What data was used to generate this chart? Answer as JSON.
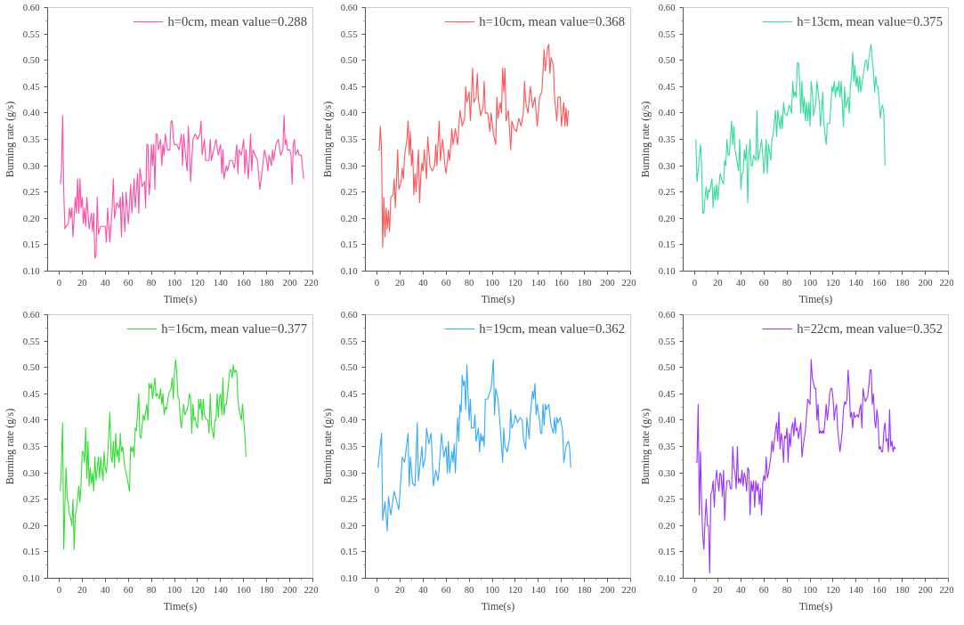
{
  "chart_data": [
    {
      "type": "line",
      "xlabel": "Time(s)",
      "ylabel": "Burning rate (g/s)",
      "legend": "top right",
      "xlim": [
        -10,
        220
      ],
      "xticks": [
        0,
        20,
        40,
        60,
        80,
        100,
        120,
        140,
        160,
        180,
        200,
        220
      ],
      "ylim": [
        0.1,
        0.6
      ],
      "yticks": [
        {
          "value": 0.1,
          "label": "0.10"
        },
        0.15,
        {
          "value": 0.2,
          "label": "0.20"
        },
        0.25,
        {
          "value": 0.3,
          "label": "0.30"
        },
        0.35,
        {
          "value": 0.4,
          "label": "0.40"
        },
        0.45,
        {
          "value": 0.5,
          "label": "0.50"
        },
        0.55,
        {
          "value": 0.6,
          "label": "0.60"
        }
      ],
      "series": [
        {
          "name": "h=0cm, mean value=0.288",
          "color": "#ff4da6",
          "x": [
            1,
            2,
            3,
            4,
            5,
            6,
            8,
            9,
            10,
            11,
            12,
            14,
            15,
            16,
            17,
            18,
            19,
            20,
            21,
            22,
            23,
            24,
            26,
            28,
            29,
            30,
            31,
            32,
            33,
            34,
            36,
            38,
            40,
            41,
            42,
            44,
            46,
            47,
            48,
            50,
            52,
            53,
            54,
            55,
            57,
            58,
            60,
            62,
            63,
            65,
            66,
            68,
            69,
            70,
            72,
            74,
            75,
            76,
            77,
            78,
            79,
            80,
            81,
            82,
            83,
            84,
            85,
            86,
            88,
            89,
            90,
            91,
            92,
            94,
            96,
            97,
            98,
            99,
            100,
            102,
            104,
            106,
            107,
            108,
            110,
            111,
            112,
            113,
            114,
            116,
            118,
            120,
            122,
            123,
            124,
            126,
            127,
            130,
            131,
            132,
            134,
            136,
            138,
            140,
            141,
            142,
            143,
            145,
            146,
            148,
            150,
            152,
            154,
            155,
            156,
            158,
            160,
            161,
            162,
            164,
            166,
            167,
            168,
            170,
            172,
            174,
            176,
            178,
            180,
            181,
            182,
            184,
            185,
            186,
            188,
            190,
            192,
            194,
            195,
            196,
            197,
            198,
            200,
            201,
            202,
            203,
            204,
            205,
            207,
            208,
            210,
            212
          ],
          "values": [
            0.265,
            0.29,
            0.395,
            0.25,
            0.18,
            0.185,
            0.19,
            0.22,
            0.2,
            0.22,
            0.165,
            0.24,
            0.21,
            0.275,
            0.21,
            0.275,
            0.22,
            0.24,
            0.19,
            0.22,
            0.185,
            0.24,
            0.18,
            0.21,
            0.175,
            0.21,
            0.125,
            0.13,
            0.24,
            0.17,
            0.185,
            0.185,
            0.185,
            0.155,
            0.22,
            0.155,
            0.22,
            0.275,
            0.2,
            0.23,
            0.22,
            0.24,
            0.165,
            0.25,
            0.175,
            0.25,
            0.19,
            0.265,
            0.21,
            0.275,
            0.22,
            0.285,
            0.21,
            0.295,
            0.26,
            0.27,
            0.22,
            0.34,
            0.34,
            0.245,
            0.27,
            0.34,
            0.3,
            0.34,
            0.255,
            0.36,
            0.36,
            0.33,
            0.35,
            0.3,
            0.34,
            0.32,
            0.36,
            0.33,
            0.33,
            0.385,
            0.385,
            0.35,
            0.34,
            0.34,
            0.33,
            0.36,
            0.3,
            0.36,
            0.31,
            0.29,
            0.375,
            0.33,
            0.27,
            0.35,
            0.36,
            0.35,
            0.36,
            0.385,
            0.32,
            0.35,
            0.31,
            0.31,
            0.35,
            0.31,
            0.33,
            0.35,
            0.32,
            0.34,
            0.285,
            0.33,
            0.275,
            0.3,
            0.29,
            0.31,
            0.31,
            0.295,
            0.34,
            0.285,
            0.33,
            0.32,
            0.35,
            0.285,
            0.33,
            0.275,
            0.36,
            0.29,
            0.33,
            0.32,
            0.31,
            0.255,
            0.29,
            0.33,
            0.31,
            0.29,
            0.32,
            0.3,
            0.33,
            0.31,
            0.34,
            0.35,
            0.32,
            0.33,
            0.395,
            0.34,
            0.35,
            0.33,
            0.33,
            0.32,
            0.265,
            0.34,
            0.35,
            0.32,
            0.33,
            0.32,
            0.32,
            0.275
          ]
        }
      ]
    },
    {
      "type": "line",
      "xlabel": "Time(s)",
      "ylabel": "Burning rate (g/s)",
      "legend": "top right",
      "xlim": [
        -10,
        220
      ],
      "xticks": [
        0,
        20,
        40,
        60,
        80,
        100,
        120,
        140,
        160,
        180,
        200,
        220
      ],
      "ylim": [
        0.1,
        0.6
      ],
      "yticks": [
        {
          "value": 0.1,
          "label": "0.10"
        },
        0.15,
        {
          "value": 0.2,
          "label": "0.20"
        },
        0.25,
        {
          "value": 0.3,
          "label": "0.30"
        },
        0.35,
        {
          "value": 0.4,
          "label": "0.40"
        },
        0.45,
        {
          "value": 0.5,
          "label": "0.50"
        },
        0.55,
        {
          "value": 0.6,
          "label": "0.60"
        }
      ],
      "series": [
        {
          "name": "h=10cm, mean value=0.368",
          "color": "#ff5555",
          "x": [
            1,
            2,
            3,
            4,
            5,
            6,
            7,
            8,
            9,
            10,
            11,
            12,
            14,
            15,
            16,
            18,
            19,
            21,
            22,
            23,
            24,
            26,
            27,
            28,
            29,
            30,
            31,
            32,
            33,
            34,
            36,
            37,
            38,
            39,
            40,
            41,
            43,
            44,
            46,
            48,
            50,
            51,
            52,
            54,
            55,
            57,
            59,
            60,
            62,
            63,
            65,
            66,
            68,
            70,
            72,
            74,
            76,
            77,
            78,
            80,
            81,
            83,
            84,
            86,
            87,
            88,
            90,
            92,
            93,
            94,
            96,
            98,
            99,
            101,
            103,
            104,
            105,
            107,
            108,
            109,
            110,
            111,
            112,
            114,
            116,
            117,
            119,
            121,
            123,
            125,
            127,
            128,
            129,
            131,
            133,
            135,
            137,
            139,
            141,
            143,
            145,
            146,
            148,
            149,
            150,
            151,
            153,
            154,
            156,
            157,
            159,
            160,
            162,
            163,
            164,
            165,
            166
          ],
          "values": [
            0.33,
            0.33,
            0.375,
            0.33,
            0.145,
            0.24,
            0.165,
            0.22,
            0.18,
            0.215,
            0.175,
            0.24,
            0.245,
            0.275,
            0.22,
            0.33,
            0.255,
            0.27,
            0.295,
            0.275,
            0.32,
            0.35,
            0.385,
            0.32,
            0.365,
            0.3,
            0.33,
            0.245,
            0.285,
            0.25,
            0.33,
            0.23,
            0.28,
            0.305,
            0.29,
            0.33,
            0.275,
            0.355,
            0.3,
            0.29,
            0.3,
            0.34,
            0.3,
            0.385,
            0.31,
            0.35,
            0.3,
            0.285,
            0.33,
            0.31,
            0.37,
            0.34,
            0.37,
            0.34,
            0.405,
            0.375,
            0.39,
            0.45,
            0.42,
            0.44,
            0.385,
            0.485,
            0.42,
            0.43,
            0.475,
            0.425,
            0.395,
            0.41,
            0.46,
            0.4,
            0.4,
            0.365,
            0.4,
            0.36,
            0.34,
            0.43,
            0.39,
            0.42,
            0.4,
            0.485,
            0.44,
            0.485,
            0.385,
            0.405,
            0.33,
            0.385,
            0.37,
            0.365,
            0.39,
            0.375,
            0.4,
            0.46,
            0.42,
            0.4,
            0.45,
            0.41,
            0.43,
            0.375,
            0.43,
            0.44,
            0.52,
            0.48,
            0.525,
            0.53,
            0.475,
            0.505,
            0.49,
            0.43,
            0.385,
            0.43,
            0.43,
            0.375,
            0.42,
            0.375,
            0.41,
            0.375,
            0.405
          ]
        }
      ]
    },
    {
      "type": "line",
      "xlabel": "Time(s)",
      "ylabel": "Burning rate (g/s)",
      "legend": "top right",
      "xlim": [
        -10,
        220
      ],
      "xticks": [
        0,
        20,
        40,
        60,
        80,
        100,
        120,
        140,
        160,
        180,
        200,
        220
      ],
      "ylim": [
        0.1,
        0.6
      ],
      "yticks": [
        {
          "value": 0.1,
          "label": "0.10"
        },
        0.15,
        {
          "value": 0.2,
          "label": "0.20"
        },
        0.25,
        {
          "value": 0.3,
          "label": "0.30"
        },
        0.35,
        {
          "value": 0.4,
          "label": "0.40"
        },
        0.45,
        {
          "value": 0.5,
          "label": "0.50"
        },
        0.55,
        {
          "value": 0.6,
          "label": "0.60"
        }
      ],
      "series": [
        {
          "name": "h=13cm, mean value=0.375",
          "color": "#33dd99",
          "x": [
            1,
            2,
            3,
            5,
            6,
            7,
            8,
            9,
            10,
            11,
            12,
            13,
            15,
            16,
            17,
            18,
            19,
            20,
            22,
            24,
            25,
            26,
            27,
            28,
            29,
            30,
            32,
            33,
            34,
            35,
            37,
            38,
            39,
            40,
            41,
            42,
            43,
            44,
            45,
            46,
            47,
            48,
            49,
            50,
            51,
            53,
            54,
            55,
            56,
            58,
            59,
            60,
            62,
            63,
            64,
            66,
            67,
            68,
            70,
            71,
            72,
            74,
            75,
            76,
            77,
            78,
            80,
            82,
            84,
            85,
            86,
            87,
            88,
            89,
            90,
            91,
            92,
            93,
            94,
            95,
            96,
            97,
            98,
            99,
            100,
            101,
            102,
            103,
            105,
            106,
            108,
            109,
            110,
            111,
            112,
            113,
            114,
            115,
            117,
            118,
            119,
            120,
            121,
            122,
            123,
            124,
            125,
            126,
            127,
            129,
            130,
            131,
            133,
            134,
            135,
            136,
            137,
            138,
            139,
            140,
            141,
            142,
            143,
            144,
            146,
            148,
            149,
            150,
            151,
            153,
            154,
            155,
            156,
            157,
            158,
            159,
            161,
            162,
            163,
            164,
            165
          ],
          "values": [
            0.35,
            0.27,
            0.29,
            0.34,
            0.3,
            0.21,
            0.21,
            0.24,
            0.26,
            0.235,
            0.255,
            0.25,
            0.275,
            0.22,
            0.26,
            0.235,
            0.265,
            0.235,
            0.285,
            0.27,
            0.265,
            0.31,
            0.3,
            0.35,
            0.32,
            0.32,
            0.385,
            0.34,
            0.375,
            0.33,
            0.305,
            0.29,
            0.35,
            0.255,
            0.285,
            0.285,
            0.33,
            0.31,
            0.34,
            0.23,
            0.32,
            0.35,
            0.3,
            0.3,
            0.32,
            0.31,
            0.405,
            0.31,
            0.32,
            0.35,
            0.32,
            0.285,
            0.35,
            0.285,
            0.34,
            0.31,
            0.35,
            0.36,
            0.405,
            0.355,
            0.405,
            0.37,
            0.395,
            0.37,
            0.42,
            0.4,
            0.395,
            0.415,
            0.4,
            0.46,
            0.43,
            0.44,
            0.43,
            0.495,
            0.495,
            0.46,
            0.4,
            0.46,
            0.4,
            0.43,
            0.385,
            0.42,
            0.385,
            0.42,
            0.375,
            0.46,
            0.44,
            0.395,
            0.42,
            0.46,
            0.42,
            0.375,
            0.4,
            0.44,
            0.38,
            0.36,
            0.34,
            0.38,
            0.38,
            0.41,
            0.45,
            0.44,
            0.46,
            0.43,
            0.45,
            0.44,
            0.46,
            0.43,
            0.46,
            0.375,
            0.45,
            0.41,
            0.43,
            0.4,
            0.45,
            0.47,
            0.515,
            0.46,
            0.49,
            0.45,
            0.47,
            0.44,
            0.47,
            0.44,
            0.47,
            0.5,
            0.5,
            0.48,
            0.505,
            0.53,
            0.5,
            0.48,
            0.44,
            0.47,
            0.45,
            0.45,
            0.39,
            0.41,
            0.415,
            0.4,
            0.3
          ]
        }
      ]
    },
    {
      "type": "line",
      "xlabel": "Time(s)",
      "ylabel": "Burning rate (g/s)",
      "legend": "top right",
      "xlim": [
        -10,
        220
      ],
      "xticks": [
        0,
        20,
        40,
        60,
        80,
        100,
        120,
        140,
        160,
        180,
        200,
        220
      ],
      "ylim": [
        0.1,
        0.6
      ],
      "yticks": [
        {
          "value": 0.1,
          "label": "0.10"
        },
        0.15,
        {
          "value": 0.2,
          "label": "0.20"
        },
        0.25,
        {
          "value": 0.3,
          "label": "0.30"
        },
        0.35,
        {
          "value": 0.4,
          "label": "0.40"
        },
        0.45,
        {
          "value": 0.5,
          "label": "0.50"
        },
        0.55,
        {
          "value": 0.6,
          "label": "0.60"
        }
      ],
      "series": [
        {
          "name": "h=16cm, mean value=0.377",
          "color": "#33dd33",
          "x": [
            1,
            2,
            3,
            4,
            5,
            6,
            7,
            8,
            9,
            10,
            11,
            12,
            13,
            14,
            15,
            17,
            18,
            19,
            20,
            21,
            22,
            23,
            24,
            25,
            26,
            27,
            28,
            29,
            30,
            31,
            32,
            34,
            35,
            36,
            38,
            39,
            40,
            41,
            42,
            44,
            45,
            46,
            47,
            48,
            49,
            50,
            51,
            52,
            53,
            54,
            55,
            57,
            59,
            61,
            62,
            63,
            64,
            65,
            66,
            67,
            69,
            70,
            71,
            72,
            73,
            74,
            76,
            77,
            78,
            79,
            80,
            81,
            82,
            83,
            84,
            85,
            87,
            88,
            89,
            90,
            91,
            92,
            93,
            95,
            97,
            98,
            99,
            100,
            101,
            102,
            103,
            104,
            105,
            106,
            107,
            108,
            109,
            111,
            112,
            113,
            114,
            115,
            116,
            117,
            118,
            119,
            120,
            121,
            122,
            123,
            124,
            125,
            126,
            128,
            129,
            130,
            131,
            132,
            133,
            134,
            135,
            136,
            137,
            138,
            139,
            140,
            141,
            142,
            143,
            144,
            145,
            146,
            148,
            149,
            150,
            151,
            152,
            153,
            154,
            155,
            156,
            158,
            159,
            160,
            161,
            162
          ],
          "values": [
            0.265,
            0.32,
            0.395,
            0.155,
            0.24,
            0.31,
            0.25,
            0.24,
            0.22,
            0.215,
            0.2,
            0.25,
            0.155,
            0.22,
            0.23,
            0.275,
            0.245,
            0.28,
            0.34,
            0.34,
            0.32,
            0.385,
            0.29,
            0.36,
            0.275,
            0.31,
            0.28,
            0.3,
            0.265,
            0.33,
            0.285,
            0.33,
            0.29,
            0.33,
            0.285,
            0.34,
            0.31,
            0.3,
            0.33,
            0.415,
            0.33,
            0.32,
            0.36,
            0.31,
            0.375,
            0.33,
            0.345,
            0.32,
            0.375,
            0.34,
            0.35,
            0.31,
            0.29,
            0.265,
            0.35,
            0.34,
            0.35,
            0.33,
            0.385,
            0.38,
            0.45,
            0.37,
            0.365,
            0.39,
            0.41,
            0.4,
            0.43,
            0.4,
            0.47,
            0.46,
            0.47,
            0.44,
            0.46,
            0.48,
            0.445,
            0.45,
            0.44,
            0.46,
            0.43,
            0.45,
            0.41,
            0.425,
            0.42,
            0.45,
            0.46,
            0.48,
            0.44,
            0.49,
            0.515,
            0.49,
            0.445,
            0.44,
            0.4,
            0.385,
            0.41,
            0.43,
            0.41,
            0.42,
            0.43,
            0.45,
            0.44,
            0.375,
            0.43,
            0.4,
            0.405,
            0.39,
            0.385,
            0.44,
            0.42,
            0.44,
            0.4,
            0.44,
            0.41,
            0.4,
            0.4,
            0.375,
            0.45,
            0.39,
            0.38,
            0.365,
            0.4,
            0.4,
            0.45,
            0.405,
            0.44,
            0.45,
            0.41,
            0.48,
            0.41,
            0.43,
            0.43,
            0.45,
            0.495,
            0.495,
            0.48,
            0.505,
            0.49,
            0.495,
            0.49,
            0.44,
            0.42,
            0.4,
            0.43,
            0.4,
            0.375,
            0.33
          ]
        }
      ]
    },
    {
      "type": "line",
      "xlabel": "Time(s)",
      "ylabel": "Burning rate (g/s)",
      "legend": "top right",
      "xlim": [
        -10,
        220
      ],
      "xticks": [
        0,
        20,
        40,
        60,
        80,
        100,
        120,
        140,
        160,
        180,
        200,
        220
      ],
      "ylim": [
        0.1,
        0.6
      ],
      "yticks": [
        {
          "value": 0.1,
          "label": "0.10"
        },
        0.15,
        {
          "value": 0.2,
          "label": "0.20"
        },
        0.25,
        {
          "value": 0.3,
          "label": "0.30"
        },
        0.35,
        {
          "value": 0.4,
          "label": "0.40"
        },
        0.45,
        {
          "value": 0.5,
          "label": "0.50"
        },
        0.55,
        {
          "value": 0.6,
          "label": "0.60"
        }
      ],
      "series": [
        {
          "name": "h=19cm, mean value=0.362",
          "color": "#33aaff",
          "x": [
            1,
            4,
            5,
            7,
            9,
            10,
            12,
            15,
            19,
            22,
            24,
            27,
            28,
            29,
            31,
            33,
            35,
            36,
            39,
            40,
            42,
            43,
            45,
            47,
            49,
            51,
            53,
            54,
            56,
            58,
            60,
            61,
            62,
            63,
            65,
            66,
            67,
            68,
            70,
            71,
            72,
            73,
            74,
            75,
            76,
            77,
            78,
            80,
            81,
            82,
            84,
            85,
            86,
            88,
            89,
            90,
            91,
            92,
            93,
            94,
            96,
            99,
            101,
            102,
            103,
            105,
            107,
            109,
            110,
            111,
            113,
            115,
            116,
            117,
            119,
            120,
            122,
            124,
            126,
            127,
            129,
            130,
            132,
            133,
            135,
            136,
            137,
            138,
            139,
            141,
            142,
            143,
            144,
            145,
            146,
            147,
            149,
            151,
            153,
            154,
            155,
            156,
            157,
            159,
            161,
            162,
            164,
            166,
            167,
            168
          ],
          "values": [
            0.31,
            0.375,
            0.21,
            0.245,
            0.19,
            0.255,
            0.22,
            0.265,
            0.23,
            0.33,
            0.32,
            0.375,
            0.275,
            0.33,
            0.28,
            0.275,
            0.395,
            0.285,
            0.35,
            0.31,
            0.33,
            0.385,
            0.355,
            0.375,
            0.275,
            0.305,
            0.285,
            0.31,
            0.375,
            0.33,
            0.35,
            0.3,
            0.36,
            0.3,
            0.34,
            0.32,
            0.355,
            0.3,
            0.405,
            0.36,
            0.43,
            0.415,
            0.485,
            0.465,
            0.475,
            0.42,
            0.505,
            0.4,
            0.44,
            0.385,
            0.385,
            0.41,
            0.36,
            0.385,
            0.34,
            0.375,
            0.36,
            0.37,
            0.35,
            0.44,
            0.44,
            0.46,
            0.515,
            0.41,
            0.46,
            0.44,
            0.385,
            0.32,
            0.385,
            0.35,
            0.34,
            0.365,
            0.42,
            0.385,
            0.395,
            0.41,
            0.395,
            0.405,
            0.4,
            0.365,
            0.345,
            0.405,
            0.365,
            0.41,
            0.455,
            0.44,
            0.47,
            0.41,
            0.43,
            0.4,
            0.375,
            0.375,
            0.43,
            0.39,
            0.43,
            0.42,
            0.43,
            0.39,
            0.375,
            0.405,
            0.375,
            0.405,
            0.395,
            0.405,
            0.38,
            0.32,
            0.35,
            0.36,
            0.35,
            0.31
          ]
        }
      ]
    },
    {
      "type": "line",
      "xlabel": "Time(s)",
      "ylabel": "Burning rate (g/s)",
      "legend": "top right",
      "xlim": [
        -10,
        220
      ],
      "xticks": [
        0,
        20,
        40,
        60,
        80,
        100,
        120,
        140,
        160,
        180,
        200,
        220
      ],
      "ylim": [
        0.1,
        0.6
      ],
      "yticks": [
        {
          "value": 0.1,
          "label": "0.10"
        },
        0.15,
        {
          "value": 0.2,
          "label": "0.20"
        },
        0.25,
        {
          "value": 0.3,
          "label": "0.30"
        },
        0.35,
        {
          "value": 0.4,
          "label": "0.40"
        },
        0.45,
        {
          "value": 0.5,
          "label": "0.50"
        },
        0.55,
        {
          "value": 0.6,
          "label": "0.60"
        }
      ],
      "series": [
        {
          "name": "h=22cm, mean value=0.352",
          "color": "#9933ff",
          "x": [
            1,
            2,
            3,
            4,
            5,
            6,
            7,
            8,
            9,
            10,
            11,
            12,
            13,
            14,
            15,
            16,
            17,
            18,
            19,
            20,
            21,
            22,
            23,
            24,
            25,
            26,
            27,
            28,
            30,
            31,
            32,
            33,
            34,
            35,
            36,
            37,
            38,
            39,
            40,
            41,
            42,
            43,
            44,
            45,
            46,
            47,
            48,
            49,
            50,
            51,
            52,
            53,
            54,
            55,
            56,
            57,
            58,
            59,
            60,
            61,
            62,
            63,
            64,
            66,
            67,
            68,
            70,
            71,
            72,
            73,
            74,
            75,
            76,
            77,
            78,
            79,
            80,
            81,
            82,
            83,
            84,
            85,
            86,
            87,
            88,
            89,
            90,
            91,
            92,
            93,
            94,
            96,
            98,
            99,
            100,
            101,
            102,
            103,
            104,
            105,
            106,
            107,
            108,
            109,
            110,
            111,
            112,
            113,
            114,
            115,
            116,
            117,
            118,
            119,
            120,
            121,
            122,
            123,
            124,
            126,
            128,
            129,
            130,
            131,
            132,
            133,
            134,
            135,
            136,
            137,
            138,
            139,
            141,
            142,
            143,
            144,
            145,
            146,
            147,
            148,
            149,
            150,
            151,
            152,
            153,
            154,
            155,
            156,
            157,
            158,
            159,
            160,
            161,
            162,
            163,
            164,
            165,
            166,
            167,
            168,
            169,
            170,
            171,
            172,
            173,
            174
          ],
          "values": [
            0.32,
            0.32,
            0.43,
            0.22,
            0.34,
            0.24,
            0.18,
            0.155,
            0.21,
            0.25,
            0.2,
            0.2,
            0.11,
            0.26,
            0.265,
            0.285,
            0.235,
            0.28,
            0.305,
            0.285,
            0.265,
            0.3,
            0.295,
            0.255,
            0.305,
            0.21,
            0.26,
            0.285,
            0.285,
            0.27,
            0.27,
            0.35,
            0.31,
            0.3,
            0.27,
            0.35,
            0.28,
            0.29,
            0.28,
            0.305,
            0.275,
            0.3,
            0.29,
            0.265,
            0.31,
            0.305,
            0.22,
            0.285,
            0.265,
            0.285,
            0.235,
            0.285,
            0.265,
            0.28,
            0.24,
            0.27,
            0.22,
            0.28,
            0.295,
            0.285,
            0.33,
            0.29,
            0.3,
            0.33,
            0.36,
            0.34,
            0.38,
            0.395,
            0.36,
            0.415,
            0.345,
            0.375,
            0.36,
            0.32,
            0.37,
            0.365,
            0.385,
            0.32,
            0.375,
            0.35,
            0.385,
            0.395,
            0.37,
            0.405,
            0.38,
            0.385,
            0.365,
            0.38,
            0.395,
            0.33,
            0.35,
            0.38,
            0.44,
            0.435,
            0.43,
            0.515,
            0.48,
            0.47,
            0.46,
            0.46,
            0.4,
            0.43,
            0.375,
            0.38,
            0.375,
            0.38,
            0.375,
            0.4,
            0.43,
            0.4,
            0.42,
            0.45,
            0.46,
            0.46,
            0.44,
            0.4,
            0.42,
            0.43,
            0.38,
            0.34,
            0.38,
            0.42,
            0.435,
            0.43,
            0.44,
            0.495,
            0.46,
            0.405,
            0.415,
            0.385,
            0.415,
            0.405,
            0.41,
            0.405,
            0.42,
            0.43,
            0.385,
            0.46,
            0.445,
            0.435,
            0.44,
            0.445,
            0.465,
            0.495,
            0.495,
            0.43,
            0.45,
            0.4,
            0.385,
            0.42,
            0.4,
            0.345,
            0.35,
            0.34,
            0.34,
            0.38,
            0.395,
            0.36,
            0.365,
            0.34,
            0.42,
            0.35,
            0.36,
            0.34,
            0.35,
            0.345
          ]
        }
      ]
    }
  ]
}
